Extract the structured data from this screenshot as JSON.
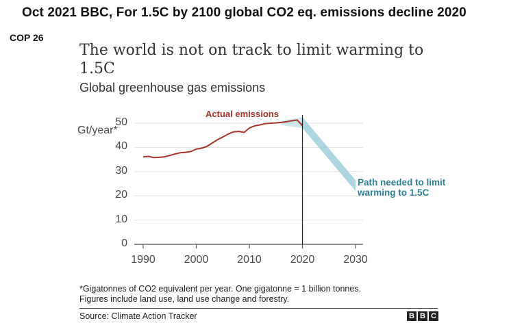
{
  "caption": "Oct 2021 BBC, For 1.5C by 2100 global CO2 eq. emissions decline 2020",
  "tag": "COP 26",
  "headline": "The world is not on track to limit warming to 1.5C",
  "footnote_line1": "*Gigatonnes of CO2 equivalent per year. One gigatonne = 1 billion tonnes.",
  "footnote_line2": "Figures include land use, land use change and forestry.",
  "source": "Source: Climate Action Tracker",
  "logo_letters": [
    "B",
    "B",
    "C"
  ],
  "colors": {
    "actual": "#a8352b",
    "path": "#9fcfdc",
    "path_label": "#2f7f97",
    "axis": "#555555",
    "grid": "#e2e2e2"
  },
  "chart_data": {
    "type": "line",
    "title": "Global greenhouse gas emissions",
    "ylabel": "Gt/year*",
    "ylim": [
      0,
      50
    ],
    "xlim": [
      1990,
      2030
    ],
    "yticks": [
      0,
      10,
      20,
      30,
      40,
      50
    ],
    "xticks": [
      1990,
      2000,
      2010,
      2020,
      2030
    ],
    "grid": true,
    "series": [
      {
        "name": "Actual emissions",
        "x": [
          1990,
          1991,
          1992,
          1993,
          1994,
          1995,
          1996,
          1997,
          1998,
          1999,
          2000,
          2001,
          2002,
          2003,
          2004,
          2005,
          2006,
          2007,
          2008,
          2009,
          2010,
          2011,
          2012,
          2013,
          2014,
          2015,
          2016,
          2017,
          2018,
          2019,
          2020
        ],
        "y": [
          36.1,
          36.3,
          35.8,
          35.9,
          36.1,
          36.7,
          37.3,
          37.8,
          38.0,
          38.3,
          39.3,
          39.7,
          40.4,
          41.8,
          43.2,
          44.3,
          45.5,
          46.4,
          46.6,
          46.2,
          48.0,
          48.9,
          49.3,
          49.8,
          50.0,
          50.1,
          50.3,
          50.6,
          51.0,
          51.3,
          49.0
        ]
      },
      {
        "name": "Path needed to limit warming to 1.5C",
        "x": [
          2020,
          2030
        ],
        "y_upper": [
          52.5,
          26.5
        ],
        "y_lower": [
          48.0,
          22.0
        ]
      }
    ],
    "annotations": [
      "Actual emissions",
      "Path needed to limit warming to 1.5C"
    ],
    "marker_x": 2020
  }
}
